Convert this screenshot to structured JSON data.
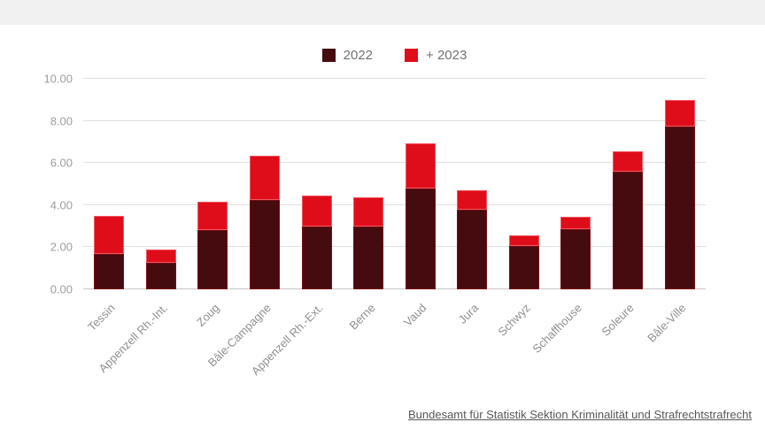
{
  "page": {
    "top_band_color": "#f1f1f1",
    "background_color": "#ffffff"
  },
  "legend": {
    "items": [
      {
        "label": "2022",
        "color": "#450b0f"
      },
      {
        "label": "+ 2023",
        "color": "#df0d1a"
      }
    ]
  },
  "chart_data": {
    "type": "bar",
    "stacked": true,
    "title": "",
    "xlabel": "",
    "ylabel": "",
    "ylim": [
      0,
      10
    ],
    "yticks": [
      "0.00",
      "2.00",
      "4.00",
      "6.00",
      "8.00",
      "10.00"
    ],
    "grid": true,
    "legend_position": "top-center",
    "categories": [
      "Tessin",
      "Appenzell Rh.-Int.",
      "Zoug",
      "Bâle-Campagne",
      "Appenzell Rh.-Ext.",
      "Berne",
      "Vaud",
      "Jura",
      "Schwyz",
      "Schaffhouse",
      "Soleure",
      "Bâle-Ville"
    ],
    "series": [
      {
        "name": "2022",
        "color": "#450b0f",
        "values": [
          1.7,
          1.25,
          2.8,
          4.25,
          3.0,
          3.0,
          4.8,
          3.8,
          2.05,
          2.85,
          5.6,
          7.75
        ]
      },
      {
        "name": "+ 2023",
        "color": "#df0d1a",
        "values": [
          1.8,
          0.65,
          1.35,
          2.1,
          1.45,
          1.35,
          2.15,
          0.9,
          0.5,
          0.6,
          0.95,
          1.25
        ]
      }
    ],
    "stack_totals": [
      3.5,
      1.9,
      4.15,
      6.35,
      4.45,
      4.35,
      6.95,
      4.7,
      2.55,
      3.45,
      6.55,
      9.0
    ]
  },
  "footer": {
    "source_link": "Bundesamt für Statistik Sektion Kriminalität und Strafrechtstrafrecht"
  }
}
